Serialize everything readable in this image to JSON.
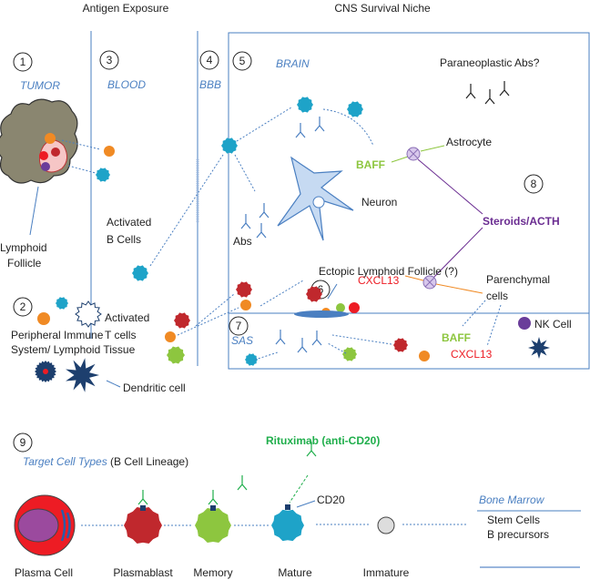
{
  "headers": {
    "antigen_exposure": "Antigen Exposure",
    "cns_niche": "CNS Survival Niche"
  },
  "sections": {
    "n1": "1",
    "tumor": "TUMOR",
    "n2": "2",
    "peripheral_1": "Peripheral Immune",
    "peripheral_2": "System/ Lymphoid Tissue",
    "n3": "3",
    "blood": "BLOOD",
    "n4": "4",
    "bbb": "BBB",
    "n5": "5",
    "brain": "BRAIN",
    "n6": "6",
    "n7": "7",
    "sas": "SAS",
    "n8": "8",
    "n9": "9"
  },
  "labels": {
    "lymphoid_1": "Lymphoid",
    "lymphoid_2": "Follicle",
    "act_b_1": "Activated",
    "act_b_2": "B Cells",
    "act_t_1": "Activated",
    "act_t_2": "T cells",
    "dendritic": "Dendritic cell",
    "paraneoplastic": "Paraneoplastic Abs?",
    "abs": "Abs",
    "neuron": "Neuron",
    "astrocyte": "Astrocyte",
    "baff": "BAFF",
    "cxcl13": "CXCL13",
    "steroids": "Steroids/ACTH",
    "parenchymal_1": "Parenchymal",
    "parenchymal_2": "cells",
    "ectopic": "Ectopic Lymphoid Follicle (?)",
    "sas_baff": "BAFF",
    "sas_cxcl13": "CXCL13",
    "nk": "NK Cell"
  },
  "lineage": {
    "title_italic": "Target Cell Types",
    "title_rest": " (B Cell Lineage)",
    "rituximab": "Rituximab (anti-CD20)",
    "cd20": "CD20",
    "cells": [
      "Plasma Cell",
      "Plasmablast",
      "Memory",
      "Mature",
      "Immature"
    ],
    "bone_marrow": "Bone Marrow",
    "stem_cells": "Stem Cells",
    "b_precursors": "B precursors"
  },
  "colors": {
    "line_blue": "#4a7fc1",
    "b_cell": "#1ea3c8",
    "t_cell": "#f08a24",
    "red_cell": "#c0282d",
    "green": "#8dc63f",
    "baff_green": "#8dc63f",
    "cxcl13_red": "#ed1c24",
    "steroid_purple": "#6a2c91",
    "rituximab_green": "#1fae4b",
    "neuron": "#c6daf2"
  }
}
